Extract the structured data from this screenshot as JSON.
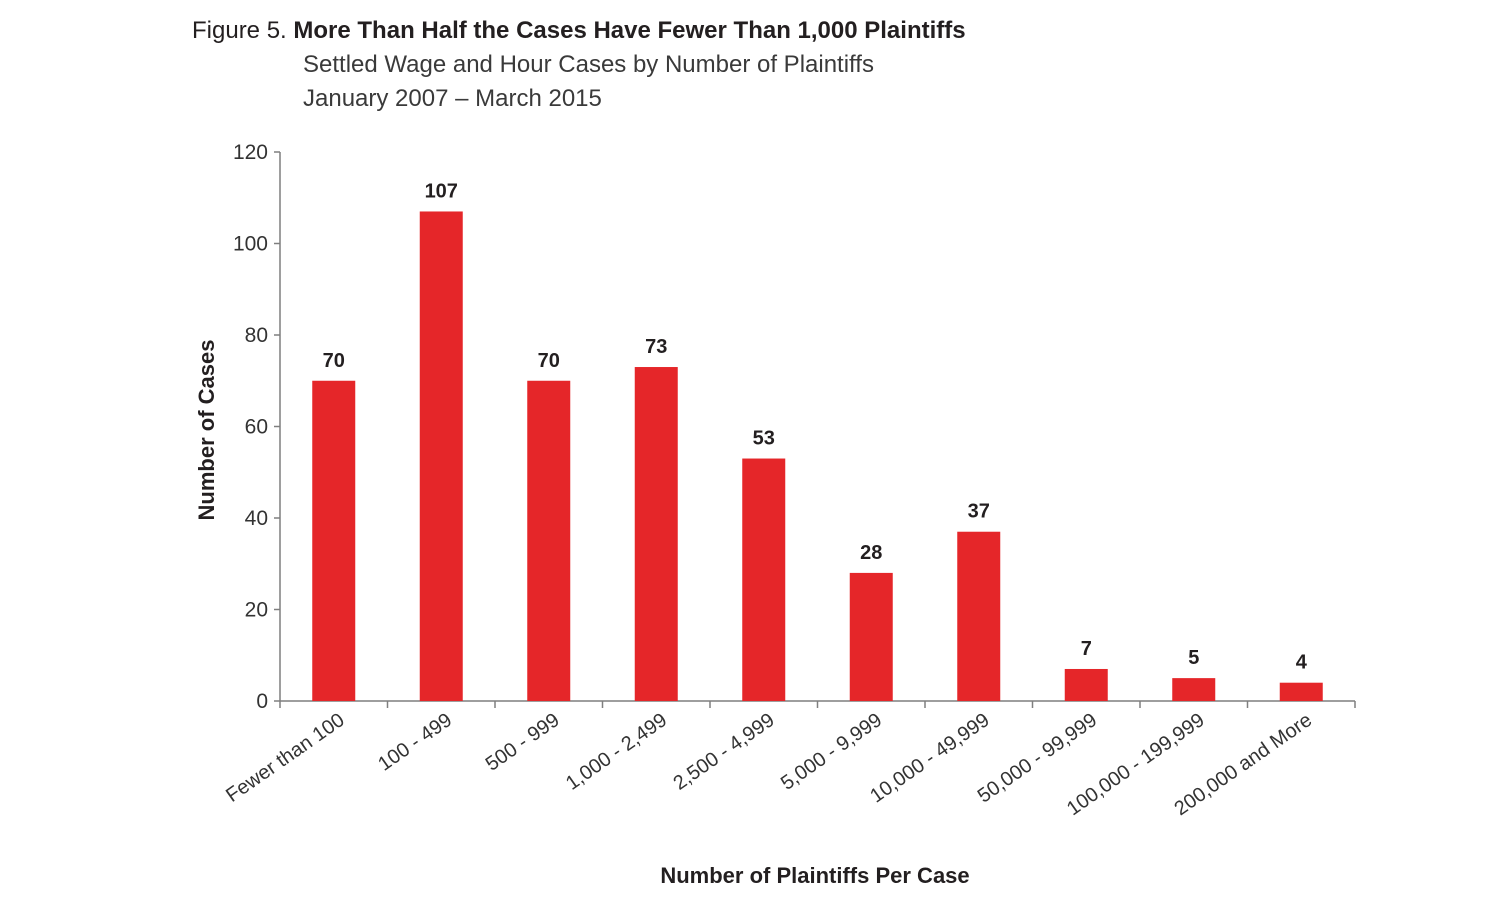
{
  "header": {
    "figure_label": "Figure 5.",
    "title": "More Than Half the Cases Have Fewer Than 1,000 Plaintiffs",
    "subtitle_line1": "Settled Wage and Hour Cases by Number of Plaintiffs",
    "subtitle_line2": "January 2007 – March 2015"
  },
  "colors": {
    "bar": "#e52629",
    "axis": "#7f7f7f"
  },
  "chart_data": {
    "type": "bar",
    "categories": [
      "Fewer than 100",
      "100 - 499",
      "500 - 999",
      "1,000 - 2,499",
      "2,500 - 4,999",
      "5,000 - 9,999",
      "10,000 - 49,999",
      "50,000 - 99,999",
      "100,000 - 199,999",
      "200,000 and More"
    ],
    "values": [
      70,
      107,
      70,
      73,
      53,
      28,
      37,
      7,
      5,
      4
    ],
    "data_labels": [
      "70",
      "107",
      "70",
      "73",
      "53",
      "28",
      "37",
      "7",
      "5",
      "4"
    ],
    "xlabel": "Number of Plaintiffs Per Case",
    "ylabel": "Number of Cases",
    "ylim": [
      0,
      120
    ],
    "yticks": [
      0,
      20,
      40,
      60,
      80,
      100,
      120
    ],
    "grid": false,
    "legend": "none"
  }
}
